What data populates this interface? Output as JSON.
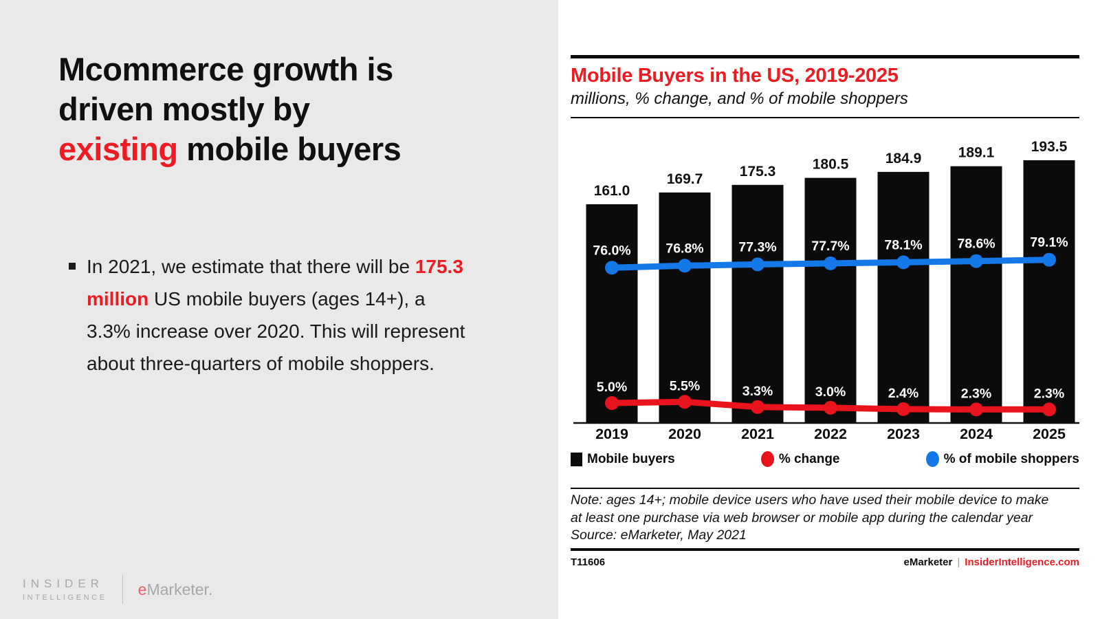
{
  "slide": {
    "title": {
      "line1": "Mcommerce growth is",
      "line2": "driven mostly by",
      "line3_highlight": "existing",
      "line3_rest": " mobile buyers"
    },
    "bullet": {
      "pre": "In 2021, we estimate that there will be ",
      "highlight": "175.3 million",
      "post": " US mobile buyers (ages 14+), a 3.3% increase over 2020. This will represent about three-quarters of mobile shoppers."
    },
    "brand": {
      "insider_line1": "INSIDER",
      "insider_line2": "INTELLIGENCE",
      "emarketer_e": "e",
      "emarketer_rest": "Marketer."
    }
  },
  "chart": {
    "title": "Mobile Buyers in the US, 2019-2025",
    "subtitle": "millions, % change, and % of mobile shoppers",
    "legend": [
      {
        "label": "Mobile buyers",
        "swatch": "black-square"
      },
      {
        "label": "% change",
        "swatch": "red-dot"
      },
      {
        "label": "% of mobile shoppers",
        "swatch": "blue-dot"
      }
    ],
    "note": "Note: ages 14+; mobile device users who have used their mobile device to make at least one purchase via web browser or mobile app during the calendar year",
    "source": "Source: eMarketer, May 2021",
    "footer_id": "T11606",
    "footer_brand": "eMarketer",
    "footer_separator": "|",
    "footer_site": "InsiderIntelligence.com"
  },
  "chart_data": {
    "type": "bar",
    "subtype": "bar-with-two-line-overlays",
    "categories": [
      "2019",
      "2020",
      "2021",
      "2022",
      "2023",
      "2024",
      "2025"
    ],
    "series": [
      {
        "name": "Mobile buyers",
        "type": "bar",
        "unit": "millions",
        "color": "#0b0b0b",
        "values": [
          161.0,
          169.7,
          175.3,
          180.5,
          184.9,
          189.1,
          193.5
        ]
      },
      {
        "name": "% change",
        "type": "line",
        "unit": "percent",
        "color": "#e8131c",
        "values": [
          5.0,
          5.5,
          3.3,
          3.0,
          2.4,
          2.3,
          2.3
        ]
      },
      {
        "name": "% of mobile shoppers",
        "type": "line",
        "unit": "percent",
        "color": "#1478e8",
        "values": [
          76.0,
          76.8,
          77.3,
          77.7,
          78.1,
          78.6,
          79.1
        ]
      }
    ],
    "title": "Mobile Buyers in the US, 2019-2025",
    "xlabel": "",
    "ylabel": "millions",
    "ylim": [
      0,
      218
    ],
    "grid": false,
    "legend_position": "bottom",
    "value_labels": "above-bars and white labels inside bars above line markers"
  },
  "colors": {
    "accent_red": "#ed1b22",
    "line_red": "#e8131c",
    "line_blue": "#1478e8",
    "bar_black": "#0b0b0b",
    "panel_gray": "#e9e9e9"
  }
}
